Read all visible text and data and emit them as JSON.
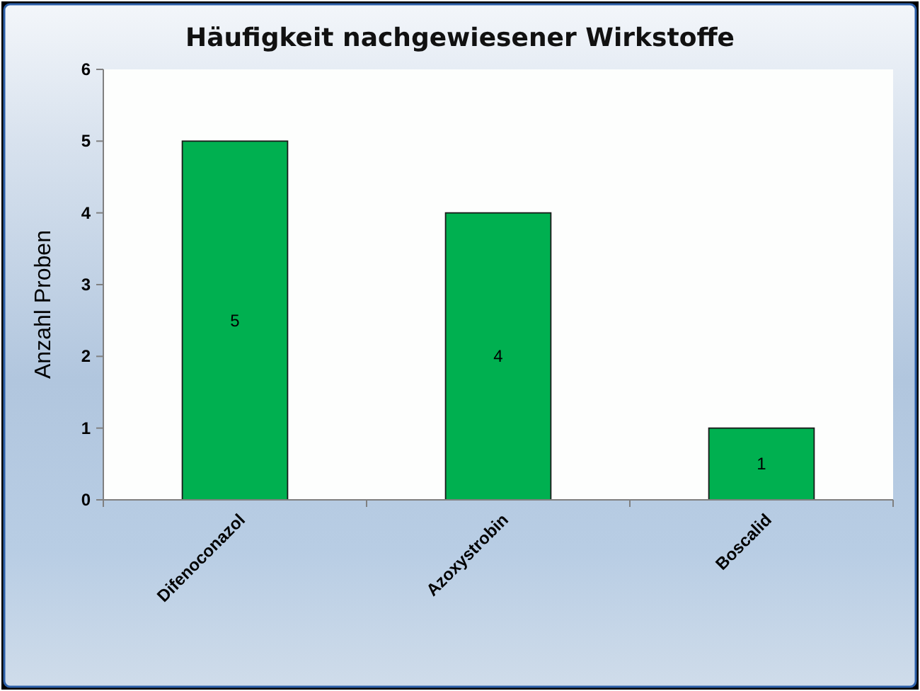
{
  "chart_data": {
    "type": "bar",
    "title": "Häufigkeit nachgewiesener Wirkstoffe",
    "ylabel": "Anzahl Proben",
    "categories": [
      "Difenoconazol",
      "Azoxystrobin",
      "Boscalid"
    ],
    "values": [
      5,
      4,
      1
    ],
    "color": "#00b050",
    "ylim": [
      0,
      6
    ],
    "yticks": [
      0,
      1,
      2,
      3,
      4,
      5,
      6
    ],
    "data_labels": true
  }
}
